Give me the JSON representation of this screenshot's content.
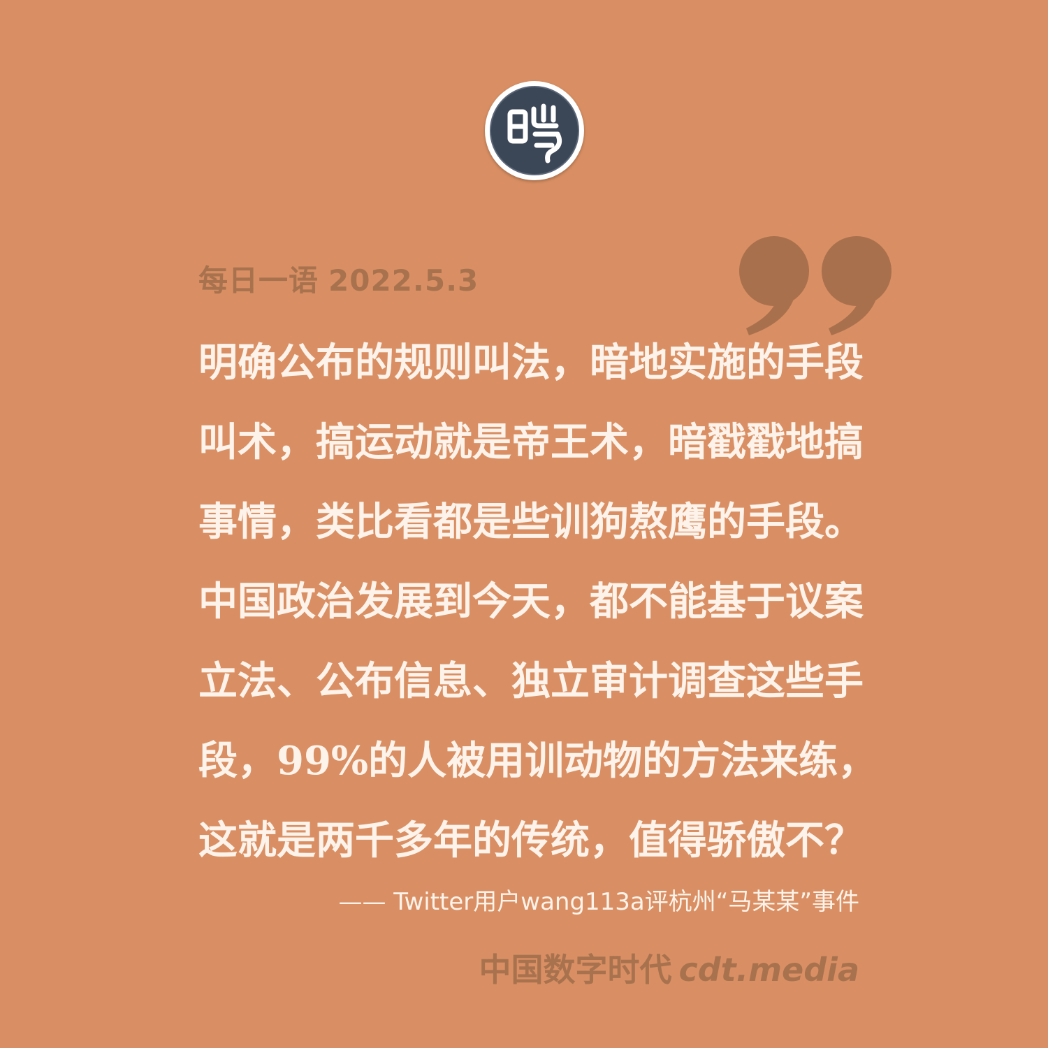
{
  "logo": {
    "icon": "cdt-seal-logo",
    "glyph": "䜶"
  },
  "header": {
    "date_label": "每日一语",
    "date": "2022.5.3"
  },
  "quote": {
    "lines": [
      "明确公布的规则叫法，暗地实施的手段",
      "叫术，搞运动就是帝王术，暗戳戳地搞",
      "事情，类比看都是些训狗熬鹰的手段。",
      "中国政治发展到今天，都不能基于议案",
      "立法、公布信息、独立审计调查这些手",
      "段，99%的人被用训动物的方法来练，",
      "这就是两千多年的传统，值得骄傲不？"
    ],
    "attribution": "—— Twitter用户wang113a评杭州“马某某”事件"
  },
  "footer": {
    "brand_name": "中国数字时代",
    "brand_url": "cdt.media"
  },
  "colors": {
    "background": "#d98f63",
    "text": "#fdf3ea",
    "muted": "#a8724f",
    "logo_dark": "#3b4656"
  }
}
